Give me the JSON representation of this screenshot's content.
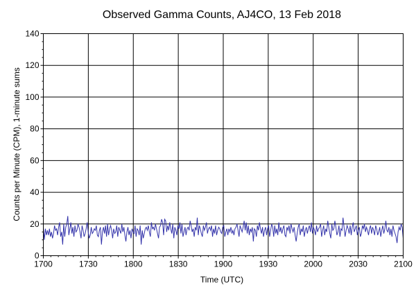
{
  "chart_data": {
    "type": "line",
    "title": "Observed Gamma Counts, AJ4CO, 13 Feb 2018",
    "xlabel": "Time (UTC)",
    "ylabel": "Counts per Minute (CPM), 1-minute sums",
    "x_tick_labels": [
      "1700",
      "1730",
      "1800",
      "1830",
      "1900",
      "1930",
      "2000",
      "2030",
      "2100"
    ],
    "y_ticks": [
      0,
      20,
      40,
      60,
      80,
      100,
      120,
      140
    ],
    "xlim_minutes": [
      0,
      240
    ],
    "ylim": [
      0,
      140
    ],
    "grid": true,
    "line_color": "#3333aa",
    "series": [
      {
        "name": "",
        "values": [
          18,
          10,
          17,
          13,
          16,
          13,
          17,
          12,
          15,
          11,
          14,
          19,
          16,
          17,
          13,
          18,
          21,
          12,
          15,
          7,
          20,
          12,
          18,
          20,
          25,
          13,
          17,
          21,
          14,
          18,
          12,
          19,
          15,
          16,
          20,
          18,
          15,
          11,
          19,
          16,
          12,
          14,
          17,
          21,
          15,
          11,
          13,
          18,
          14,
          15,
          17,
          16,
          19,
          13,
          12,
          16,
          18,
          7,
          15,
          18,
          14,
          19,
          12,
          20,
          13,
          17,
          19,
          16,
          11,
          17,
          14,
          15,
          19,
          12,
          18,
          16,
          14,
          20,
          15,
          18,
          13,
          9,
          15,
          18,
          13,
          16,
          11,
          17,
          15,
          14,
          19,
          12,
          17,
          16,
          13,
          19,
          7,
          16,
          11,
          14,
          17,
          18,
          16,
          19,
          15,
          12,
          21,
          17,
          18,
          16,
          20,
          17,
          14,
          11,
          18,
          19,
          23,
          21,
          13,
          23,
          22,
          15,
          19,
          16,
          21,
          17,
          14,
          20,
          11,
          18,
          16,
          13,
          19,
          17,
          21,
          14,
          20,
          12,
          15,
          18,
          13,
          17,
          18,
          16,
          22,
          19,
          15,
          17,
          12,
          18,
          16,
          24,
          13,
          19,
          17,
          14,
          12,
          19,
          16,
          18,
          21,
          14,
          17,
          18,
          16,
          19,
          12,
          17,
          14,
          19,
          13,
          16,
          18,
          17,
          15,
          14,
          18,
          19,
          12,
          15,
          17,
          13,
          17,
          15,
          18,
          14,
          16,
          13,
          17,
          18,
          20,
          16,
          12,
          19,
          17,
          15,
          18,
          22,
          16,
          21,
          14,
          19,
          13,
          17,
          15,
          18,
          9,
          17,
          16,
          12,
          19,
          16,
          21,
          17,
          14,
          18,
          12,
          16,
          18,
          13,
          17,
          19,
          12,
          16,
          20,
          18,
          12,
          19,
          14,
          17,
          13,
          21,
          15,
          18,
          14,
          17,
          19,
          13,
          12,
          18,
          16,
          19,
          14,
          20,
          17,
          15,
          18,
          13,
          9,
          14,
          18,
          20,
          13,
          17,
          15,
          19,
          12,
          16,
          18,
          14,
          17,
          19,
          15,
          21,
          14,
          18,
          16,
          13,
          19,
          15,
          17,
          18,
          20,
          12,
          16,
          19,
          13,
          17,
          15,
          22,
          18,
          14,
          11,
          20,
          16,
          17,
          22,
          18,
          13,
          15,
          19,
          12,
          17,
          16,
          24,
          18,
          12,
          16,
          19,
          17,
          14,
          19,
          13,
          18,
          21,
          15,
          17,
          19,
          13,
          16,
          18,
          12,
          14,
          19,
          17,
          20,
          15,
          18,
          16,
          13,
          17,
          19,
          14,
          18,
          16,
          13,
          19,
          17,
          13,
          15,
          18,
          12,
          16,
          19,
          14,
          17,
          22,
          16,
          15,
          18,
          13,
          17,
          12,
          19,
          16,
          14,
          12,
          8,
          15,
          18,
          16,
          20,
          18,
          11
        ]
      }
    ]
  }
}
